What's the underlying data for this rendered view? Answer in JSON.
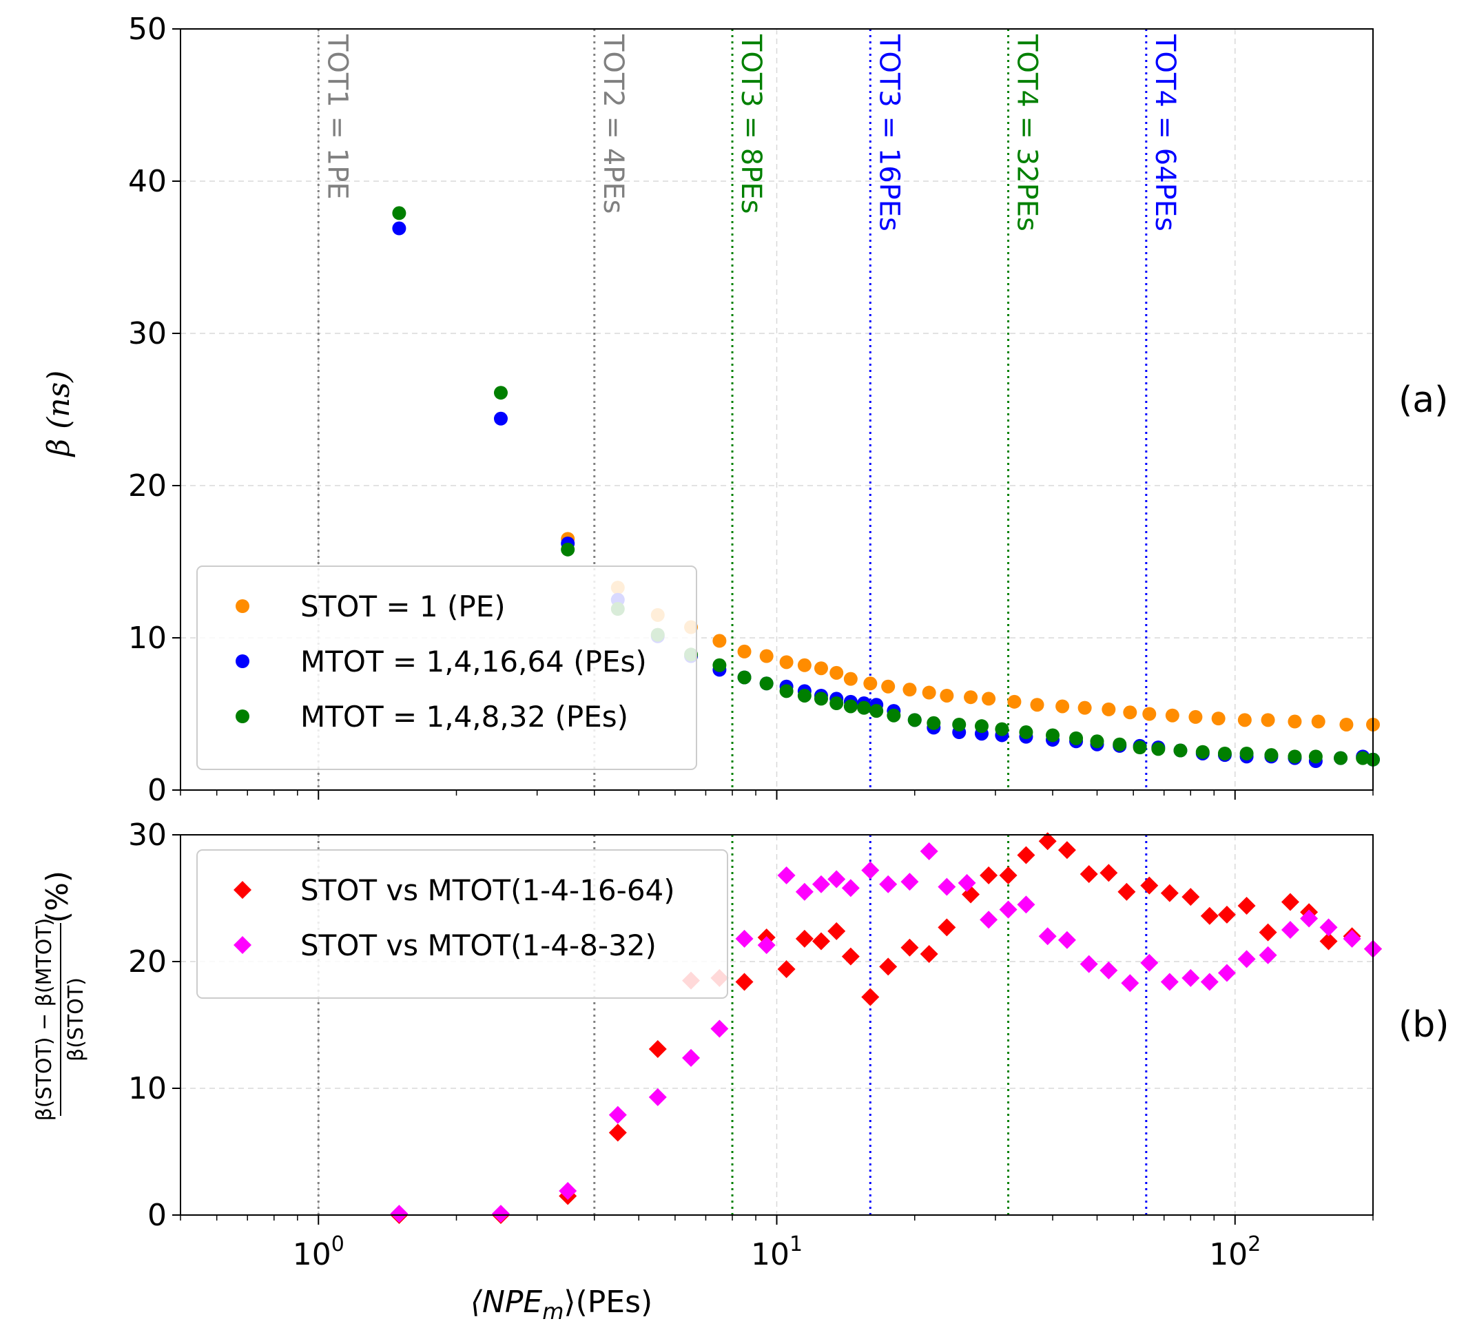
{
  "chart_data": [
    {
      "panel": "(a)",
      "type": "scatter",
      "xscale": "log",
      "xlim": [
        0.5,
        200
      ],
      "ylim": [
        0,
        50
      ],
      "ylabel": "β (ns)",
      "yticks": [
        0,
        10,
        20,
        30,
        40,
        50
      ],
      "grid": true,
      "legend_position": "lower-left",
      "vlines": [
        {
          "x": 1,
          "label": "TOT1 = 1PE",
          "color": "#808080"
        },
        {
          "x": 4,
          "label": "TOT2 = 4PEs",
          "color": "#808080"
        },
        {
          "x": 8,
          "label": "TOT3 = 8PEs",
          "color": "#008000"
        },
        {
          "x": 16,
          "label": "TOT3 = 16PEs",
          "color": "#0000ff"
        },
        {
          "x": 32,
          "label": "TOT4 = 32PEs",
          "color": "#008000"
        },
        {
          "x": 64,
          "label": "TOT4 = 64PEs",
          "color": "#0000ff"
        }
      ],
      "series": [
        {
          "name": "STOT = 1 (PE)",
          "color": "#ff8c00",
          "marker": "circle",
          "x": [
            3.5,
            4.5,
            5.5,
            6.5,
            7.5,
            8.5,
            9.5,
            10.5,
            11.5,
            12.5,
            13.5,
            14.5,
            16,
            17.5,
            19.5,
            21.5,
            23.5,
            26.5,
            29,
            33,
            37,
            42,
            47,
            53,
            59,
            65,
            73,
            82,
            92,
            105,
            118,
            135,
            152,
            175,
            200
          ],
          "y": [
            16.5,
            13.3,
            11.5,
            10.7,
            9.8,
            9.1,
            8.8,
            8.4,
            8.2,
            8.0,
            7.7,
            7.3,
            7.0,
            6.8,
            6.6,
            6.4,
            6.2,
            6.1,
            6.0,
            5.8,
            5.6,
            5.5,
            5.4,
            5.3,
            5.1,
            5.0,
            4.9,
            4.8,
            4.7,
            4.6,
            4.6,
            4.5,
            4.5,
            4.3,
            4.3
          ]
        },
        {
          "name": "MTOT = 1,4,16,64 (PEs)",
          "color": "#0000ff",
          "marker": "circle",
          "x": [
            1.5,
            2.5,
            3.5,
            4.5,
            5.5,
            6.5,
            7.5,
            8.5,
            9.5,
            10.5,
            11.5,
            12.5,
            13.5,
            14.5,
            15.5,
            16.5,
            18,
            20,
            22,
            25,
            28,
            31,
            35,
            40,
            45,
            50,
            56,
            62,
            68,
            76,
            85,
            95,
            106,
            120,
            135,
            150,
            170,
            190,
            200
          ],
          "y": [
            36.9,
            24.4,
            16.2,
            12.5,
            10.1,
            8.8,
            7.9,
            7.4,
            7.0,
            6.8,
            6.5,
            6.2,
            6.0,
            5.8,
            5.7,
            5.6,
            5.2,
            4.6,
            4.1,
            3.8,
            3.7,
            3.6,
            3.5,
            3.3,
            3.2,
            3.0,
            2.9,
            2.9,
            2.8,
            2.6,
            2.4,
            2.3,
            2.2,
            2.2,
            2.1,
            1.9,
            2.1,
            2.2,
            2.0
          ]
        },
        {
          "name": "MTOT = 1,4,8,32 (PEs)",
          "color": "#007f00",
          "marker": "circle",
          "x": [
            1.5,
            2.5,
            3.5,
            4.5,
            5.5,
            6.5,
            7.5,
            8.5,
            9.5,
            10.5,
            11.5,
            12.5,
            13.5,
            14.5,
            15.5,
            16.5,
            18,
            20,
            22,
            25,
            28,
            31,
            35,
            40,
            45,
            50,
            56,
            62,
            68,
            76,
            85,
            95,
            106,
            120,
            135,
            150,
            170,
            190,
            200
          ],
          "y": [
            37.9,
            26.1,
            15.8,
            11.9,
            10.2,
            8.9,
            8.2,
            7.4,
            7.0,
            6.5,
            6.2,
            6.0,
            5.7,
            5.5,
            5.4,
            5.2,
            4.9,
            4.6,
            4.4,
            4.3,
            4.2,
            4.0,
            3.8,
            3.6,
            3.4,
            3.2,
            3.0,
            2.8,
            2.7,
            2.6,
            2.5,
            2.4,
            2.4,
            2.3,
            2.2,
            2.2,
            2.1,
            2.1,
            2.0
          ]
        }
      ]
    },
    {
      "panel": "(b)",
      "type": "scatter",
      "xscale": "log",
      "xlim": [
        0.5,
        200
      ],
      "ylim": [
        0,
        30
      ],
      "xlabel": "⟨NPE",
      "xlabel_sub": "m",
      "xlabel_suffix": "⟩(PEs)",
      "ylabel_numerator": "β(STOT) − β(MTOT)",
      "ylabel_denominator": "β(STOT)",
      "ylabel_unit": "(%)",
      "yticks": [
        0,
        10,
        20,
        30
      ],
      "grid": true,
      "legend_position": "upper-left",
      "series": [
        {
          "name": "STOT vs MTOT(1-4-16-64)",
          "color": "#ff0000",
          "marker": "diamond",
          "x": [
            1.5,
            2.5,
            3.5,
            4.5,
            5.5,
            6.5,
            7.5,
            8.5,
            9.5,
            10.5,
            11.5,
            12.5,
            13.5,
            14.5,
            16,
            17.5,
            19.5,
            21.5,
            23.5,
            26.5,
            29,
            32,
            35,
            39,
            43,
            48,
            53,
            58,
            65,
            72,
            80,
            88,
            96,
            106,
            118,
            132,
            145,
            160,
            180,
            200
          ],
          "y": [
            0.0,
            0.0,
            1.5,
            6.5,
            13.1,
            18.5,
            18.7,
            18.4,
            21.9,
            19.4,
            21.8,
            21.6,
            22.4,
            20.4,
            17.2,
            19.6,
            21.1,
            20.6,
            22.7,
            25.3,
            26.8,
            26.8,
            28.4,
            29.5,
            28.8,
            26.9,
            27.0,
            25.5,
            26.0,
            25.4,
            25.1,
            23.6,
            23.7,
            24.4,
            22.3,
            24.7,
            23.9,
            21.6,
            22.0,
            21.0
          ]
        },
        {
          "name": "STOT vs MTOT(1-4-8-32)",
          "color": "#ff00ff",
          "marker": "diamond",
          "x": [
            1.5,
            2.5,
            3.5,
            4.5,
            5.5,
            6.5,
            7.5,
            8.5,
            9.5,
            10.5,
            11.5,
            12.5,
            13.5,
            14.5,
            16,
            17.5,
            19.5,
            21.5,
            23.5,
            26,
            29,
            32,
            35,
            39,
            43,
            48,
            53,
            59,
            65,
            72,
            80,
            88,
            96,
            106,
            118,
            132,
            145,
            160,
            180,
            200
          ],
          "y": [
            0.1,
            0.1,
            1.9,
            7.9,
            9.3,
            12.4,
            14.7,
            21.8,
            21.3,
            26.8,
            25.5,
            26.1,
            26.5,
            25.8,
            27.2,
            26.1,
            26.3,
            28.7,
            25.9,
            26.2,
            23.3,
            24.1,
            24.5,
            22.0,
            21.7,
            19.8,
            19.3,
            18.3,
            19.9,
            18.4,
            18.7,
            18.4,
            19.1,
            20.2,
            20.5,
            22.5,
            23.4,
            22.7,
            21.8,
            21.0
          ]
        }
      ],
      "side_tag_a": "(a)",
      "side_tag_b": "(b)"
    }
  ]
}
